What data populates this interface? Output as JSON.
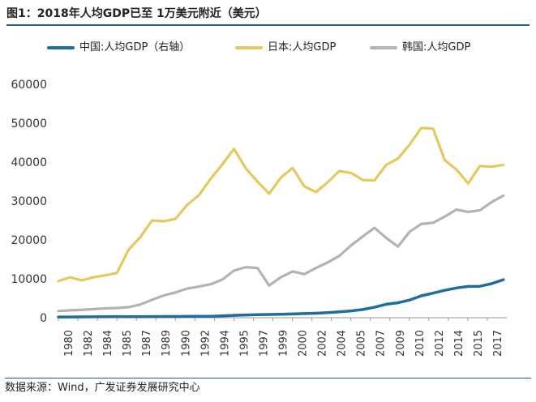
{
  "title": "图1：2018年人均GDP已至 1万美元附近（美元）",
  "source": "数据来源：Wind，广发证券发展研究中心",
  "chart_data": {
    "type": "line",
    "title": "2018年人均GDP已至 1万美元附近（美元）",
    "xlabel": "",
    "ylabel": "",
    "ylim": [
      0,
      60000
    ],
    "yticks": [
      0,
      10000,
      20000,
      30000,
      40000,
      50000,
      60000
    ],
    "ytick_labels": [
      "0",
      "10000",
      "20000",
      "30000",
      "40000",
      "50000",
      "60000"
    ],
    "xtick_labels": [
      "1980",
      "1982",
      "1984",
      "1985",
      "1987",
      "1989",
      "1990",
      "1992",
      "1994",
      "1995",
      "1997",
      "1999",
      "2000",
      "2002",
      "2004",
      "2005",
      "2007",
      "2009",
      "2010",
      "2012",
      "2014",
      "2015",
      "2017"
    ],
    "grid": false,
    "legend_position": "top",
    "series": [
      {
        "name": "中国:人均GDP（右轴）",
        "color": "#1f6d9e",
        "x": [
          1980,
          1981,
          1982,
          1983,
          1984,
          1985,
          1986,
          1987,
          1988,
          1989,
          1990,
          1991,
          1992,
          1993,
          1994,
          1995,
          1996,
          1997,
          1998,
          1999,
          2000,
          2001,
          2002,
          2003,
          2004,
          2005,
          2006,
          2007,
          2008,
          2009,
          2010,
          2011,
          2012,
          2013,
          2014,
          2015,
          2016,
          2017,
          2018
        ],
        "values": [
          195,
          197,
          203,
          225,
          251,
          294,
          281,
          252,
          284,
          311,
          318,
          333,
          366,
          377,
          473,
          609,
          709,
          781,
          828,
          873,
          959,
          1053,
          1149,
          1289,
          1509,
          1753,
          2099,
          2694,
          3468,
          3832,
          4550,
          5618,
          6317,
          7051,
          7651,
          8033,
          8079,
          8759,
          9770
        ]
      },
      {
        "name": "日本:人均GDP",
        "color": "#e6c95e",
        "x": [
          1980,
          1981,
          1982,
          1983,
          1984,
          1985,
          1986,
          1987,
          1988,
          1989,
          1990,
          1991,
          1992,
          1993,
          1994,
          1995,
          1996,
          1997,
          1998,
          1999,
          2000,
          2001,
          2002,
          2003,
          2004,
          2005,
          2006,
          2007,
          2008,
          2009,
          2010,
          2011,
          2012,
          2013,
          2014,
          2015,
          2016,
          2017,
          2018
        ],
        "values": [
          9400,
          10400,
          9600,
          10400,
          10900,
          11500,
          17500,
          20700,
          25000,
          24800,
          25400,
          29000,
          31500,
          35700,
          39400,
          43400,
          38400,
          35000,
          31900,
          36000,
          38500,
          33800,
          32300,
          34800,
          37700,
          37200,
          35400,
          35300,
          39300,
          40900,
          44500,
          48800,
          48600,
          40500,
          38100,
          34500,
          39000,
          38800,
          39300
        ]
      },
      {
        "name": "韩国:人均GDP",
        "color": "#b3b3b3",
        "x": [
          1980,
          1981,
          1982,
          1983,
          1984,
          1985,
          1986,
          1987,
          1988,
          1989,
          1990,
          1991,
          1992,
          1993,
          1994,
          1995,
          1996,
          1997,
          1998,
          1999,
          2000,
          2001,
          2002,
          2003,
          2004,
          2005,
          2006,
          2007,
          2008,
          2009,
          2010,
          2011,
          2012,
          2013,
          2014,
          2015,
          2016,
          2017,
          2018
        ],
        "values": [
          1700,
          1900,
          2000,
          2200,
          2400,
          2500,
          2700,
          3400,
          4600,
          5700,
          6500,
          7500,
          8000,
          8600,
          9800,
          12100,
          13000,
          12800,
          8300,
          10400,
          11900,
          11200,
          12800,
          14200,
          15900,
          18600,
          20900,
          23100,
          20500,
          18300,
          22100,
          24100,
          24400,
          26000,
          27800,
          27200,
          27600,
          29700,
          31400
        ]
      }
    ]
  }
}
